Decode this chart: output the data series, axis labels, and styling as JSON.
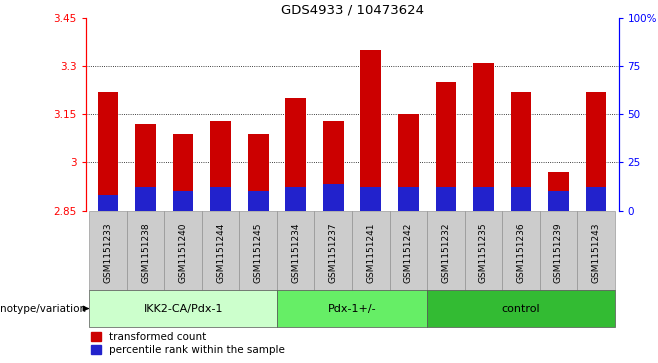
{
  "title": "GDS4933 / 10473624",
  "samples": [
    "GSM1151233",
    "GSM1151238",
    "GSM1151240",
    "GSM1151244",
    "GSM1151245",
    "GSM1151234",
    "GSM1151237",
    "GSM1151241",
    "GSM1151242",
    "GSM1151232",
    "GSM1151235",
    "GSM1151236",
    "GSM1151239",
    "GSM1151243"
  ],
  "transformed_count": [
    3.22,
    3.12,
    3.09,
    3.13,
    3.09,
    3.2,
    3.13,
    3.35,
    3.15,
    3.25,
    3.31,
    3.22,
    2.97,
    3.22
  ],
  "percentile_rank_pct": [
    8,
    12,
    10,
    12,
    10,
    12,
    14,
    12,
    12,
    12,
    12,
    12,
    10,
    12
  ],
  "ymin": 2.85,
  "ymax": 3.45,
  "yticks": [
    2.85,
    3.0,
    3.15,
    3.3,
    3.45
  ],
  "ytick_labels": [
    "2.85",
    "3",
    "3.15",
    "3.3",
    "3.45"
  ],
  "right_yticks": [
    0,
    25,
    50,
    75,
    100
  ],
  "right_ytick_labels": [
    "0",
    "25",
    "50",
    "75",
    "100%"
  ],
  "groups": [
    {
      "label": "IKK2-CA/Pdx-1",
      "start": 0,
      "end": 5,
      "color": "#ccffcc"
    },
    {
      "label": "Pdx-1+/-",
      "start": 5,
      "end": 9,
      "color": "#66ee66"
    },
    {
      "label": "control",
      "start": 9,
      "end": 14,
      "color": "#33bb33"
    }
  ],
  "bar_color_red": "#cc0000",
  "bar_color_blue": "#2222cc",
  "bar_width": 0.55,
  "tick_bg_color": "#cccccc",
  "group_label": "genotype/variation",
  "legend_red": "transformed count",
  "legend_blue": "percentile rank within the sample",
  "grid_color": "#555555"
}
